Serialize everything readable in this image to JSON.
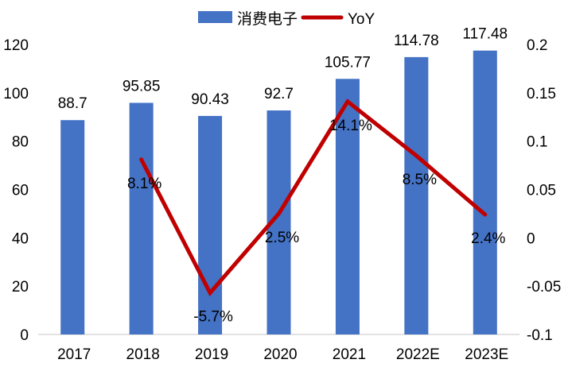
{
  "colors": {
    "bar": "#4472C4",
    "line": "#C00000",
    "axis_line": "#D9D9D9",
    "text": "#000000",
    "background": "#FFFFFF"
  },
  "legend": {
    "position": "top-center",
    "items": [
      {
        "label": "消费电子",
        "marker": "bar-swatch",
        "color": "#4472C4"
      },
      {
        "label": "YoY",
        "marker": "line",
        "color": "#C00000"
      }
    ]
  },
  "chart_data": {
    "type": "bar+line combo",
    "title": "",
    "categories": [
      "2017",
      "2018",
      "2019",
      "2020",
      "2021",
      "2022E",
      "2023E"
    ],
    "series": [
      {
        "name": "消费电子",
        "type": "bar",
        "axis": "left",
        "color": "#4472C4",
        "values": [
          88.7,
          95.85,
          90.43,
          92.7,
          105.77,
          114.78,
          117.48
        ],
        "labels": [
          "88.7",
          "95.85",
          "90.43",
          "92.7",
          "105.77",
          "114.78",
          "117.48"
        ]
      },
      {
        "name": "YoY",
        "type": "line",
        "axis": "right",
        "color": "#C00000",
        "values": [
          null,
          0.081,
          -0.057,
          0.025,
          0.141,
          0.085,
          0.024
        ],
        "labels": [
          null,
          "8.1%",
          "-5.7%",
          "2.5%",
          "14.1%",
          "8.5%",
          "2.4%"
        ]
      }
    ],
    "left_axis": {
      "min": 0,
      "max": 120,
      "ticks": [
        0,
        20,
        40,
        60,
        80,
        100,
        120
      ],
      "tick_labels": [
        "0",
        "20",
        "40",
        "60",
        "80",
        "100",
        "120"
      ]
    },
    "right_axis": {
      "min": -0.1,
      "max": 0.2,
      "ticks": [
        -0.1,
        -0.05,
        0,
        0.05,
        0.1,
        0.15,
        0.2
      ],
      "tick_labels": [
        "-0.1",
        "-0.05",
        "0",
        "0.05",
        "0.1",
        "0.15",
        "0.2"
      ]
    },
    "grid": false,
    "legend_position": "top-center"
  }
}
